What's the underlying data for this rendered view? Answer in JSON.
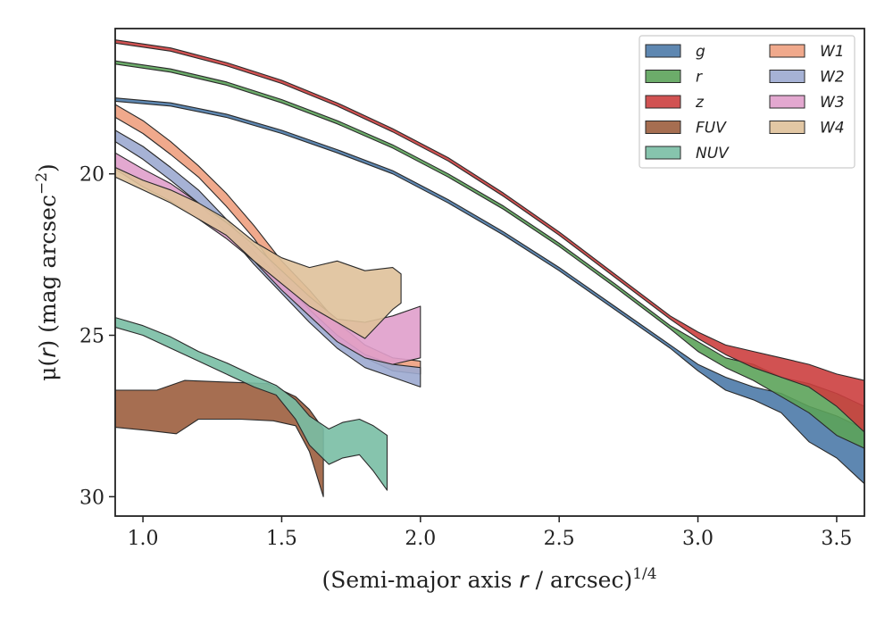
{
  "chart_data": {
    "type": "area",
    "xlabel": {
      "text": "(Semi-major axis ",
      "var": "r",
      "unit": " / arcsec)",
      "sup": "1/4"
    },
    "ylabel": {
      "text": "μ(",
      "var": "r",
      "unit": ") (mag arcsec",
      "sup": "−2",
      "close": ")"
    },
    "xlim": [
      0.9,
      3.6
    ],
    "ylim": [
      30.6,
      15.5
    ],
    "y_inverted": true,
    "xticks": [
      1.0,
      1.5,
      2.0,
      2.5,
      3.0,
      3.5
    ],
    "xtick_labels": [
      "1.0",
      "1.5",
      "2.0",
      "2.5",
      "3.0",
      "3.5"
    ],
    "yticks": [
      20,
      25,
      30
    ],
    "ytick_labels": [
      "20",
      "25",
      "30"
    ],
    "grid": false,
    "legend": {
      "placement": "top-right",
      "columns": 2
    },
    "series": [
      {
        "name": "g",
        "color": "#4c7aa8",
        "lower": [
          [
            0.9,
            17.75
          ],
          [
            1.1,
            17.9
          ],
          [
            1.3,
            18.25
          ],
          [
            1.5,
            18.75
          ],
          [
            1.7,
            19.35
          ],
          [
            1.9,
            20.0
          ],
          [
            2.1,
            20.9
          ],
          [
            2.3,
            21.9
          ],
          [
            2.5,
            23.0
          ],
          [
            2.7,
            24.2
          ],
          [
            2.9,
            25.4
          ],
          [
            3.0,
            26.1
          ],
          [
            3.1,
            26.7
          ],
          [
            3.2,
            27.0
          ],
          [
            3.3,
            27.4
          ],
          [
            3.4,
            28.3
          ],
          [
            3.5,
            28.8
          ],
          [
            3.6,
            29.6
          ]
        ],
        "upper": [
          [
            0.9,
            17.65
          ],
          [
            1.1,
            17.8
          ],
          [
            1.3,
            18.15
          ],
          [
            1.5,
            18.65
          ],
          [
            1.7,
            19.25
          ],
          [
            1.9,
            19.9
          ],
          [
            2.1,
            20.8
          ],
          [
            2.3,
            21.8
          ],
          [
            2.5,
            22.9
          ],
          [
            2.7,
            24.1
          ],
          [
            2.9,
            25.3
          ],
          [
            3.0,
            25.9
          ],
          [
            3.1,
            26.3
          ],
          [
            3.2,
            26.6
          ],
          [
            3.3,
            26.8
          ],
          [
            3.4,
            27.2
          ],
          [
            3.5,
            27.5
          ],
          [
            3.6,
            27.9
          ]
        ]
      },
      {
        "name": "r",
        "color": "#5ca35a",
        "lower": [
          [
            0.9,
            16.6
          ],
          [
            1.1,
            16.85
          ],
          [
            1.3,
            17.25
          ],
          [
            1.5,
            17.8
          ],
          [
            1.7,
            18.45
          ],
          [
            1.9,
            19.2
          ],
          [
            2.1,
            20.1
          ],
          [
            2.3,
            21.1
          ],
          [
            2.5,
            22.25
          ],
          [
            2.7,
            23.5
          ],
          [
            2.9,
            24.8
          ],
          [
            3.0,
            25.5
          ],
          [
            3.1,
            26.0
          ],
          [
            3.2,
            26.4
          ],
          [
            3.3,
            26.9
          ],
          [
            3.4,
            27.4
          ],
          [
            3.5,
            28.1
          ],
          [
            3.6,
            28.5
          ]
        ],
        "upper": [
          [
            0.9,
            16.5
          ],
          [
            1.1,
            16.75
          ],
          [
            1.3,
            17.15
          ],
          [
            1.5,
            17.7
          ],
          [
            1.7,
            18.35
          ],
          [
            1.9,
            19.1
          ],
          [
            2.1,
            20.0
          ],
          [
            2.3,
            21.0
          ],
          [
            2.5,
            22.15
          ],
          [
            2.7,
            23.4
          ],
          [
            2.9,
            24.7
          ],
          [
            3.0,
            25.2
          ],
          [
            3.1,
            25.7
          ],
          [
            3.2,
            25.9
          ],
          [
            3.3,
            26.3
          ],
          [
            3.4,
            26.5
          ],
          [
            3.5,
            26.8
          ],
          [
            3.6,
            27.2
          ]
        ]
      },
      {
        "name": "z",
        "color": "#cc3f3f",
        "lower": [
          [
            0.9,
            15.95
          ],
          [
            1.1,
            16.2
          ],
          [
            1.3,
            16.65
          ],
          [
            1.5,
            17.2
          ],
          [
            1.7,
            17.9
          ],
          [
            1.9,
            18.7
          ],
          [
            2.1,
            19.6
          ],
          [
            2.3,
            20.7
          ],
          [
            2.5,
            21.9
          ],
          [
            2.7,
            23.2
          ],
          [
            2.9,
            24.5
          ],
          [
            3.0,
            25.1
          ],
          [
            3.1,
            25.6
          ],
          [
            3.2,
            26.0
          ],
          [
            3.3,
            26.3
          ],
          [
            3.4,
            26.6
          ],
          [
            3.5,
            27.2
          ],
          [
            3.6,
            28.0
          ]
        ],
        "upper": [
          [
            0.9,
            15.85
          ],
          [
            1.1,
            16.1
          ],
          [
            1.3,
            16.55
          ],
          [
            1.5,
            17.1
          ],
          [
            1.7,
            17.8
          ],
          [
            1.9,
            18.6
          ],
          [
            2.1,
            19.5
          ],
          [
            2.3,
            20.6
          ],
          [
            2.5,
            21.8
          ],
          [
            2.7,
            23.1
          ],
          [
            2.9,
            24.4
          ],
          [
            3.0,
            24.9
          ],
          [
            3.1,
            25.3
          ],
          [
            3.2,
            25.5
          ],
          [
            3.3,
            25.7
          ],
          [
            3.4,
            25.9
          ],
          [
            3.5,
            26.2
          ],
          [
            3.6,
            26.4
          ]
        ]
      },
      {
        "name": "FUV",
        "color": "#9c5e3e",
        "lower": [
          [
            0.9,
            27.85
          ],
          [
            1.02,
            27.95
          ],
          [
            1.12,
            28.05
          ],
          [
            1.2,
            27.6
          ],
          [
            1.35,
            27.6
          ],
          [
            1.47,
            27.65
          ],
          [
            1.55,
            27.8
          ],
          [
            1.6,
            28.6
          ],
          [
            1.65,
            30.0
          ]
        ],
        "upper": [
          [
            0.9,
            26.7
          ],
          [
            1.05,
            26.7
          ],
          [
            1.15,
            26.4
          ],
          [
            1.3,
            26.45
          ],
          [
            1.45,
            26.5
          ],
          [
            1.55,
            26.9
          ],
          [
            1.6,
            27.3
          ],
          [
            1.65,
            27.9
          ]
        ]
      },
      {
        "name": "NUV",
        "color": "#79bea4",
        "lower": [
          [
            0.9,
            24.75
          ],
          [
            1.0,
            25.0
          ],
          [
            1.1,
            25.4
          ],
          [
            1.2,
            25.8
          ],
          [
            1.3,
            26.2
          ],
          [
            1.4,
            26.6
          ],
          [
            1.48,
            26.85
          ],
          [
            1.55,
            27.6
          ],
          [
            1.6,
            28.4
          ],
          [
            1.67,
            29.0
          ],
          [
            1.72,
            28.8
          ],
          [
            1.78,
            28.7
          ],
          [
            1.83,
            29.2
          ],
          [
            1.88,
            29.8
          ]
        ],
        "upper": [
          [
            0.9,
            24.45
          ],
          [
            1.0,
            24.7
          ],
          [
            1.1,
            25.05
          ],
          [
            1.2,
            25.5
          ],
          [
            1.3,
            25.85
          ],
          [
            1.4,
            26.25
          ],
          [
            1.48,
            26.55
          ],
          [
            1.55,
            27.0
          ],
          [
            1.6,
            27.5
          ],
          [
            1.67,
            27.9
          ],
          [
            1.72,
            27.7
          ],
          [
            1.78,
            27.6
          ],
          [
            1.83,
            27.8
          ],
          [
            1.88,
            28.1
          ]
        ]
      },
      {
        "name": "W1",
        "color": "#eea080",
        "lower": [
          [
            0.9,
            18.25
          ],
          [
            1.0,
            18.75
          ],
          [
            1.1,
            19.4
          ],
          [
            1.2,
            20.1
          ],
          [
            1.3,
            21.0
          ],
          [
            1.4,
            22.0
          ],
          [
            1.5,
            23.2
          ],
          [
            1.6,
            24.2
          ],
          [
            1.7,
            25.1
          ],
          [
            1.8,
            25.7
          ],
          [
            1.9,
            26.1
          ],
          [
            2.0,
            26.2
          ]
        ],
        "upper": [
          [
            0.9,
            17.85
          ],
          [
            1.0,
            18.35
          ],
          [
            1.1,
            19.0
          ],
          [
            1.2,
            19.75
          ],
          [
            1.3,
            20.6
          ],
          [
            1.4,
            21.6
          ],
          [
            1.5,
            22.7
          ],
          [
            1.6,
            23.6
          ],
          [
            1.7,
            24.6
          ],
          [
            1.8,
            25.3
          ],
          [
            1.9,
            25.7
          ],
          [
            2.0,
            25.8
          ]
        ]
      },
      {
        "name": "W2",
        "color": "#9caad0",
        "lower": [
          [
            0.9,
            19.0
          ],
          [
            1.0,
            19.55
          ],
          [
            1.1,
            20.2
          ],
          [
            1.2,
            20.9
          ],
          [
            1.3,
            21.8
          ],
          [
            1.4,
            22.8
          ],
          [
            1.5,
            23.7
          ],
          [
            1.6,
            24.6
          ],
          [
            1.7,
            25.4
          ],
          [
            1.8,
            26.0
          ],
          [
            1.9,
            26.3
          ],
          [
            2.0,
            26.6
          ]
        ],
        "upper": [
          [
            0.9,
            18.65
          ],
          [
            1.0,
            19.15
          ],
          [
            1.1,
            19.8
          ],
          [
            1.2,
            20.5
          ],
          [
            1.3,
            21.4
          ],
          [
            1.4,
            22.4
          ],
          [
            1.5,
            23.3
          ],
          [
            1.6,
            24.2
          ],
          [
            1.7,
            25.0
          ],
          [
            1.8,
            25.6
          ],
          [
            1.9,
            25.9
          ],
          [
            2.0,
            26.0
          ]
        ]
      },
      {
        "name": "W3",
        "color": "#e09ecb",
        "lower": [
          [
            0.9,
            19.85
          ],
          [
            1.0,
            20.4
          ],
          [
            1.1,
            20.85
          ],
          [
            1.2,
            21.4
          ],
          [
            1.3,
            22.0
          ],
          [
            1.4,
            22.7
          ],
          [
            1.5,
            23.6
          ],
          [
            1.6,
            24.4
          ],
          [
            1.7,
            25.2
          ],
          [
            1.8,
            25.7
          ],
          [
            1.9,
            25.9
          ],
          [
            2.0,
            25.7
          ]
        ],
        "upper": [
          [
            0.9,
            19.35
          ],
          [
            1.0,
            19.85
          ],
          [
            1.1,
            20.3
          ],
          [
            1.2,
            20.9
          ],
          [
            1.3,
            21.5
          ],
          [
            1.4,
            22.2
          ],
          [
            1.5,
            23.0
          ],
          [
            1.6,
            23.8
          ],
          [
            1.7,
            24.5
          ],
          [
            1.8,
            24.6
          ],
          [
            1.9,
            24.4
          ],
          [
            2.0,
            24.1
          ]
        ]
      },
      {
        "name": "W4",
        "color": "#dfc19a",
        "lower": [
          [
            0.9,
            20.1
          ],
          [
            1.0,
            20.5
          ],
          [
            1.1,
            20.9
          ],
          [
            1.2,
            21.4
          ],
          [
            1.3,
            21.9
          ],
          [
            1.4,
            22.7
          ],
          [
            1.5,
            23.4
          ],
          [
            1.6,
            24.1
          ],
          [
            1.7,
            24.6
          ],
          [
            1.8,
            25.1
          ],
          [
            1.9,
            24.2
          ],
          [
            1.93,
            24.0
          ]
        ],
        "upper": [
          [
            0.9,
            19.8
          ],
          [
            1.0,
            20.2
          ],
          [
            1.1,
            20.5
          ],
          [
            1.2,
            20.9
          ],
          [
            1.3,
            21.4
          ],
          [
            1.4,
            22.1
          ],
          [
            1.5,
            22.6
          ],
          [
            1.6,
            22.9
          ],
          [
            1.7,
            22.7
          ],
          [
            1.8,
            23.0
          ],
          [
            1.9,
            22.9
          ],
          [
            1.93,
            23.1
          ]
        ]
      }
    ]
  }
}
